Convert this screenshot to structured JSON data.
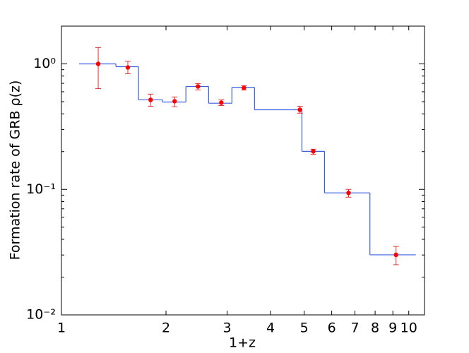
{
  "chart_data": {
    "type": "step_errorbar",
    "x_label": "1+z",
    "y_label": "Formation rate of GRB ρ(z)",
    "xscale": "log",
    "yscale": "log",
    "xlim": [
      1,
      11.1
    ],
    "ylim": [
      0.01,
      2
    ],
    "xticks": [
      1,
      2,
      3,
      4,
      5,
      6,
      7,
      8,
      9,
      10
    ],
    "yticks": [
      {
        "value": 1,
        "label": "10⁰"
      },
      {
        "value": 0.1,
        "label": "10⁻¹"
      },
      {
        "value": 0.01,
        "label": "10⁻²"
      }
    ],
    "yticks_minor": [
      0.02,
      0.03,
      0.04,
      0.05,
      0.06,
      0.07,
      0.08,
      0.09,
      0.2,
      0.3,
      0.4,
      0.5,
      0.6,
      0.7,
      0.8,
      0.9
    ],
    "series": [
      {
        "type": "step",
        "color": "#3a5fe0",
        "edges": [
          1.124,
          1.435,
          1.667,
          1.955,
          2.282,
          2.653,
          3.096,
          3.597,
          4.925,
          5.72,
          7.73,
          10.48
        ],
        "values": [
          1.0,
          0.95,
          0.517,
          0.497,
          0.661,
          0.486,
          0.65,
          0.431,
          0.201,
          0.0938,
          0.0301
        ]
      },
      {
        "type": "errorbar",
        "color": "#ff0000",
        "bar_color": "#e03030",
        "x": [
          1.276,
          1.553,
          1.806,
          2.118,
          2.472,
          2.886,
          3.353,
          4.86,
          5.31,
          6.71,
          9.19
        ],
        "values": [
          1.0,
          0.937,
          0.517,
          0.504,
          0.661,
          0.491,
          0.644,
          0.431,
          0.201,
          0.0938,
          0.0301
        ],
        "lower": [
          0.635,
          0.834,
          0.46,
          0.455,
          0.62,
          0.466,
          0.62,
          0.405,
          0.19,
          0.0867,
          0.0251
        ],
        "upper": [
          1.35,
          1.05,
          0.574,
          0.545,
          0.696,
          0.517,
          0.67,
          0.46,
          0.209,
          0.1,
          0.0351
        ]
      }
    ]
  }
}
